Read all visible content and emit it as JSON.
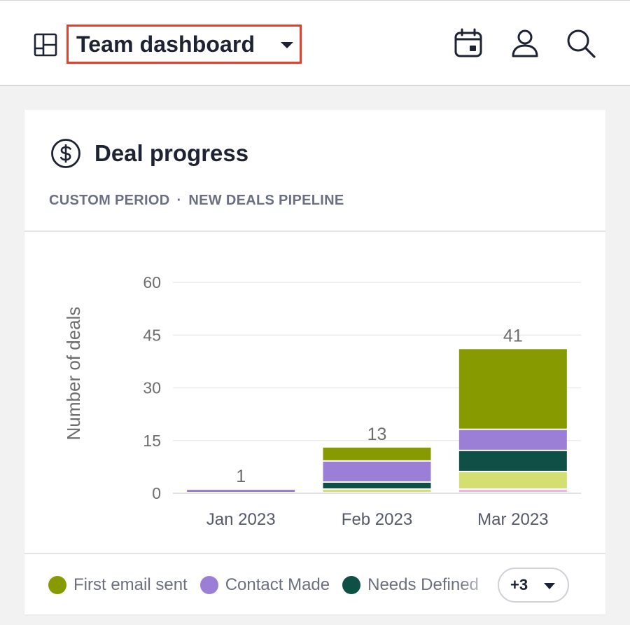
{
  "header": {
    "dashboard_name": "Team dashboard",
    "icons": [
      "layout-icon",
      "calendar-icon",
      "user-icon",
      "search-icon"
    ]
  },
  "card": {
    "title": "Deal progress",
    "icon": "dollar-icon",
    "period": "CUSTOM PERIOD",
    "separator": "·",
    "pipeline": "NEW DEALS PIPELINE"
  },
  "chart_data": {
    "type": "bar",
    "stacked": true,
    "ylabel": "Number of deals",
    "xlabel": "",
    "ylim": [
      0,
      60
    ],
    "yticks": [
      0,
      15,
      30,
      45,
      60
    ],
    "grid": true,
    "categories": [
      "Jan 2023",
      "Feb 2023",
      "Mar 2023"
    ],
    "totals": [
      "1",
      "13",
      "41"
    ],
    "series": [
      {
        "name": "",
        "color": "#efb4e6",
        "values": [
          0,
          0,
          1
        ]
      },
      {
        "name": "",
        "color": "#d3df70",
        "values": [
          0,
          1,
          5
        ]
      },
      {
        "name": "Needs Defined",
        "color": "#0e4f46",
        "values": [
          0,
          2,
          6
        ]
      },
      {
        "name": "Contact Made",
        "color": "#9b7fd6",
        "values": [
          1,
          6,
          6
        ]
      },
      {
        "name": "First email sent",
        "color": "#879a00",
        "values": [
          0,
          4,
          23
        ]
      }
    ]
  },
  "legend": {
    "items": [
      {
        "label": "First email sent",
        "color": "#879a00"
      },
      {
        "label": "Contact Made",
        "color": "#9b7fd6"
      },
      {
        "label": "Needs Defined",
        "color": "#0e4f46"
      }
    ],
    "more_label": "+3"
  },
  "colors": {
    "accent_border": "#e2402a",
    "text_dark": "#1e2333",
    "text_muted": "#6b7080"
  }
}
